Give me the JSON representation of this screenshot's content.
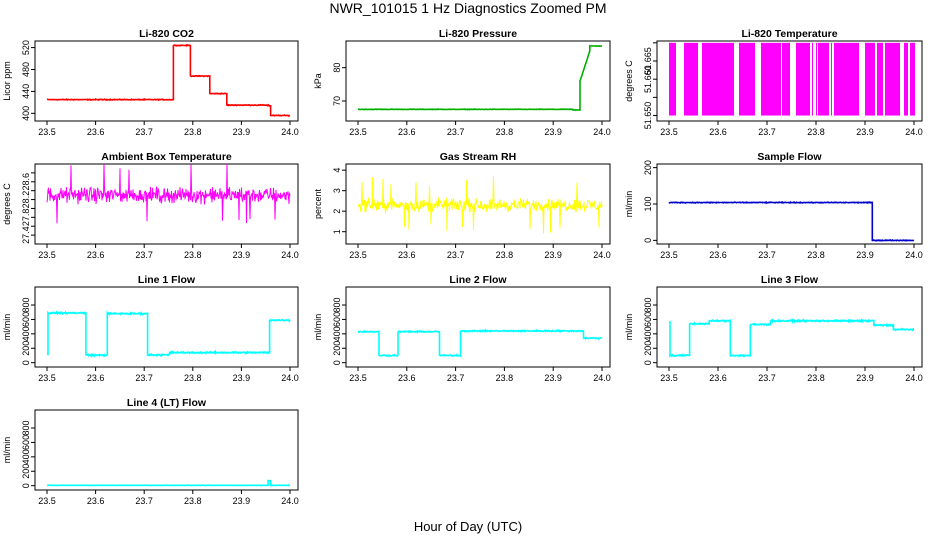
{
  "figure": {
    "title": "NWR_101015  1 Hz Diagnostics Zoomed PM",
    "xlabel": "Hour of Day (UTC)"
  },
  "chart_data": [
    {
      "type": "line",
      "title": "Li-820 CO2",
      "ylabel": "Licor ppm",
      "color": "#ff0000",
      "xlim": [
        23.5,
        24.0
      ],
      "ylim": [
        386,
        532
      ],
      "xticks": [
        "23.5",
        "23.6",
        "23.7",
        "23.8",
        "23.9",
        "24.0"
      ],
      "yticks": [
        400,
        440,
        480,
        520
      ],
      "ytick_labels": [
        "400",
        "440",
        "480",
        "520"
      ],
      "noise": 1,
      "segments": [
        {
          "x": [
            23.5,
            23.76
          ],
          "y": 425
        },
        {
          "x": [
            23.76,
            23.795
          ],
          "y": 524
        },
        {
          "x": [
            23.795,
            23.835
          ],
          "y": 468
        },
        {
          "x": [
            23.835,
            23.87
          ],
          "y": 436
        },
        {
          "x": [
            23.87,
            23.955
          ],
          "y": 415
        },
        {
          "x": [
            23.955,
            23.96
          ],
          "y": 414
        },
        {
          "x": [
            23.96,
            24.0
          ],
          "y": 396
        }
      ]
    },
    {
      "type": "line",
      "title": "Li-820 Pressure",
      "ylabel": "kPa",
      "color": "#00b000",
      "xlim": [
        23.5,
        24.0
      ],
      "ylim": [
        64,
        88
      ],
      "xticks": [
        "23.5",
        "23.6",
        "23.7",
        "23.8",
        "23.9",
        "24.0"
      ],
      "yticks": [
        70,
        80
      ],
      "ytick_labels": [
        "70",
        "80"
      ],
      "noise": 0.1,
      "segments": [
        {
          "x": [
            23.5,
            23.94
          ],
          "y": 67.5
        },
        {
          "x": [
            23.94,
            23.955
          ],
          "y": 67.3
        },
        {
          "x": [
            23.955,
            23.975
          ],
          "y": 76,
          "ramp_to": 85
        },
        {
          "x": [
            23.975,
            24.0
          ],
          "y": 86.5
        }
      ]
    },
    {
      "type": "bars",
      "title": "Li-820 Temperature",
      "ylabel": "degrees C",
      "color": "#ff00ff",
      "xlim": [
        23.5,
        24.0
      ],
      "ylim": [
        51.6485,
        51.6705
      ],
      "xticks": [
        "23.5",
        "23.6",
        "23.7",
        "23.8",
        "23.9",
        "24.0"
      ],
      "yticks": [
        51.65,
        51.655,
        51.66,
        51.665,
        51.67
      ],
      "ytick_labels": [
        "51.650",
        "",
        "51.660",
        "51.665",
        ""
      ],
      "low": 51.65,
      "high": 51.67
    },
    {
      "type": "noise",
      "title": "Ambient Box Temperature",
      "ylabel": "degrees C",
      "color": "#ff00ff",
      "xlim": [
        23.5,
        24.0
      ],
      "ylim": [
        27.2,
        29.0
      ],
      "xticks": [
        "23.5",
        "23.6",
        "23.7",
        "23.8",
        "23.9",
        "24.0"
      ],
      "yticks": [
        27.4,
        27.6,
        27.8,
        28.0,
        28.2,
        28.4,
        28.6,
        28.8
      ],
      "ytick_labels": [
        "27.4",
        "",
        "27.8",
        "",
        "28.2",
        "",
        "28.6",
        ""
      ],
      "center": 28.3,
      "spread": 0.25
    },
    {
      "type": "noise",
      "title": "Gas Stream RH",
      "ylabel": "percent",
      "color": "#ffff00",
      "xlim": [
        23.5,
        24.0
      ],
      "ylim": [
        0.4,
        4.3
      ],
      "xticks": [
        "23.5",
        "23.6",
        "23.7",
        "23.8",
        "23.9",
        "24.0"
      ],
      "yticks": [
        1,
        2,
        3,
        4
      ],
      "ytick_labels": [
        "1",
        "2",
        "3",
        "4"
      ],
      "center": 2.3,
      "spread": 0.45
    },
    {
      "type": "line",
      "title": "Sample Flow",
      "ylabel": "ml/min",
      "color": "#0000cc",
      "xlim": [
        23.5,
        24.0
      ],
      "ylim": [
        -10,
        210
      ],
      "xticks": [
        "23.5",
        "23.6",
        "23.7",
        "23.8",
        "23.9",
        "24.0"
      ],
      "yticks": [
        0,
        100,
        200
      ],
      "ytick_labels": [
        "0",
        "100",
        "200"
      ],
      "noise": 1.5,
      "segments": [
        {
          "x": [
            23.5,
            23.915
          ],
          "y": 104
        },
        {
          "x": [
            23.915,
            24.0
          ],
          "y": 0
        }
      ]
    },
    {
      "type": "line",
      "title": "Line 1 Flow",
      "ylabel": "ml/min",
      "color": "#00ffff",
      "xlim": [
        23.5,
        24.0
      ],
      "ylim": [
        -60,
        1050
      ],
      "xticks": [
        "23.5",
        "23.6",
        "23.7",
        "23.8",
        "23.9",
        "24.0"
      ],
      "yticks": [
        0,
        200,
        400,
        600,
        800
      ],
      "ytick_labels": [
        "0",
        "200",
        "400",
        "600",
        "800"
      ],
      "noise": 15,
      "segments": [
        {
          "x": [
            23.5,
            23.502
          ],
          "y": 110
        },
        {
          "x": [
            23.502,
            23.58
          ],
          "y": 690
        },
        {
          "x": [
            23.58,
            23.624
          ],
          "y": 105
        },
        {
          "x": [
            23.624,
            23.707
          ],
          "y": 680
        },
        {
          "x": [
            23.707,
            23.752
          ],
          "y": 108
        },
        {
          "x": [
            23.752,
            23.958
          ],
          "y": 140
        },
        {
          "x": [
            23.958,
            24.0
          ],
          "y": 590
        }
      ]
    },
    {
      "type": "line",
      "title": "Line 2 Flow",
      "ylabel": "ml/min",
      "color": "#00ffff",
      "xlim": [
        23.5,
        24.0
      ],
      "ylim": [
        -60,
        1050
      ],
      "xticks": [
        "23.5",
        "23.6",
        "23.7",
        "23.8",
        "23.9",
        "24.0"
      ],
      "yticks": [
        0,
        200,
        400,
        600,
        800
      ],
      "ytick_labels": [
        "0",
        "200",
        "400",
        "600",
        "800"
      ],
      "noise": 12,
      "segments": [
        {
          "x": [
            23.5,
            23.543
          ],
          "y": 430
        },
        {
          "x": [
            23.543,
            23.582
          ],
          "y": 100
        },
        {
          "x": [
            23.582,
            23.667
          ],
          "y": 430
        },
        {
          "x": [
            23.667,
            23.71
          ],
          "y": 100
        },
        {
          "x": [
            23.71,
            23.962
          ],
          "y": 440
        },
        {
          "x": [
            23.962,
            24.0
          ],
          "y": 340
        }
      ]
    },
    {
      "type": "line",
      "title": "Line 3 Flow",
      "ylabel": "ml/min",
      "color": "#00ffff",
      "xlim": [
        23.5,
        24.0
      ],
      "ylim": [
        -60,
        1050
      ],
      "xticks": [
        "23.5",
        "23.6",
        "23.7",
        "23.8",
        "23.9",
        "24.0"
      ],
      "yticks": [
        0,
        200,
        400,
        600,
        800
      ],
      "ytick_labels": [
        "0",
        "200",
        "400",
        "600",
        "800"
      ],
      "noise": 15,
      "segments": [
        {
          "x": [
            23.5,
            23.502
          ],
          "y": 560
        },
        {
          "x": [
            23.502,
            23.542
          ],
          "y": 100
        },
        {
          "x": [
            23.542,
            23.582
          ],
          "y": 540
        },
        {
          "x": [
            23.582,
            23.625
          ],
          "y": 580
        },
        {
          "x": [
            23.625,
            23.666
          ],
          "y": 100
        },
        {
          "x": [
            23.666,
            23.707
          ],
          "y": 530
        },
        {
          "x": [
            23.707,
            23.918
          ],
          "y": 580
        },
        {
          "x": [
            23.918,
            23.958
          ],
          "y": 520
        },
        {
          "x": [
            23.958,
            24.0
          ],
          "y": 460
        }
      ]
    },
    {
      "type": "line",
      "title": "Line 4 (LT) Flow",
      "ylabel": "ml/min",
      "color": "#00ffff",
      "xlim": [
        23.5,
        24.0
      ],
      "ylim": [
        -60,
        1050
      ],
      "xticks": [
        "23.5",
        "23.6",
        "23.7",
        "23.8",
        "23.9",
        "24.0"
      ],
      "yticks": [
        0,
        200,
        400,
        600,
        800
      ],
      "ytick_labels": [
        "0",
        "200",
        "400",
        "600",
        "800"
      ],
      "noise": 3,
      "segments": [
        {
          "x": [
            23.5,
            23.955
          ],
          "y": 5
        },
        {
          "x": [
            23.955,
            23.96
          ],
          "y": 70
        },
        {
          "x": [
            23.96,
            24.0
          ],
          "y": 5
        }
      ]
    }
  ]
}
